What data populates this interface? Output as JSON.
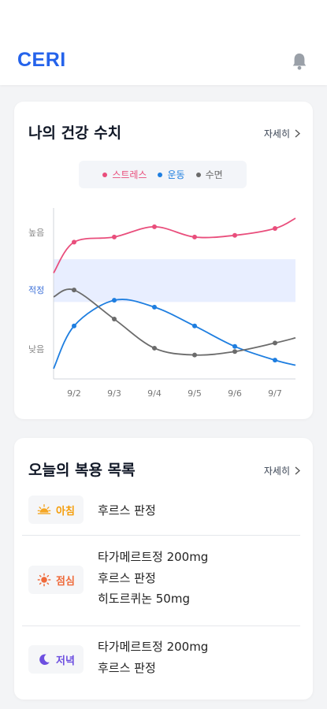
{
  "header": {
    "logo": "CERI",
    "bell_icon": "bell-icon"
  },
  "health": {
    "title": "나의 건강 수치",
    "more_label": "자세히",
    "legend": [
      {
        "label": "스트레스",
        "color": "#e94e7c"
      },
      {
        "label": "운동",
        "color": "#1e7ee0"
      },
      {
        "label": "수면",
        "color": "#6b6b6b"
      }
    ]
  },
  "chart_data": {
    "type": "line",
    "categories": [
      "9/2",
      "9/3",
      "9/4",
      "9/5",
      "9/6",
      "9/7"
    ],
    "y_ticks": [
      "높음",
      "적정",
      "낮음"
    ],
    "y_tick_colors": [
      "#888888",
      "#3b6fd8",
      "#888888"
    ],
    "ylim": [
      0,
      100
    ],
    "normal_band": [
      45,
      70
    ],
    "band_color": "#e8eeff",
    "series": [
      {
        "name": "스트레스",
        "color": "#e94e7c",
        "values": [
          80,
          83,
          89,
          83,
          84,
          88
        ]
      },
      {
        "name": "운동",
        "color": "#1e7ee0",
        "values": [
          31,
          46,
          42,
          31,
          19,
          11
        ]
      },
      {
        "name": "수면",
        "color": "#6b6b6b",
        "values": [
          52,
          35,
          18,
          14,
          16,
          21
        ]
      }
    ]
  },
  "doses": {
    "title": "오늘의 복용 목록",
    "more_label": "자세히",
    "slots": [
      {
        "label": "아침",
        "color": "#f59e0b",
        "icon": "sunrise-icon",
        "meds": [
          "후르스 판정"
        ]
      },
      {
        "label": "점심",
        "color": "#ef6a3a",
        "icon": "sun-icon",
        "meds": [
          "타가메르트정 200mg",
          "후르스 판정",
          "히도르퀴논 50mg"
        ]
      },
      {
        "label": "저녁",
        "color": "#6d4fe0",
        "icon": "moon-icon",
        "meds": [
          "타가메르트정 200mg",
          "후르스 판정"
        ]
      }
    ]
  }
}
